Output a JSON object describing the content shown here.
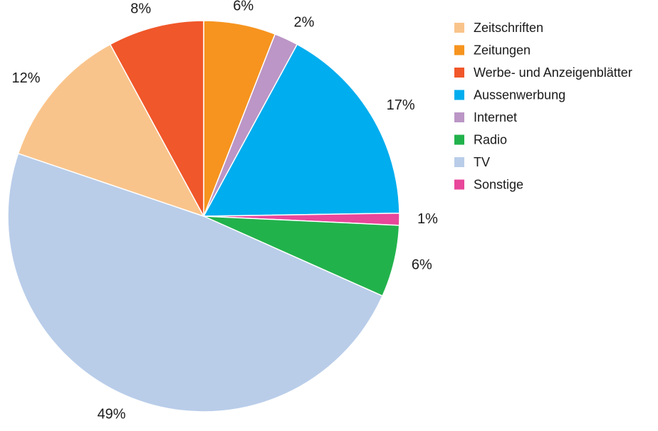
{
  "chart_data": {
    "type": "pie",
    "title": "",
    "series": [
      {
        "label": "Zeitschriften",
        "value": 12,
        "display": "12%",
        "color": "#f9c48b"
      },
      {
        "label": "Zeitungen",
        "value": 6,
        "display": "6%",
        "color": "#f6941f"
      },
      {
        "label": "Werbe- und Anzeigenblätter",
        "value": 8,
        "display": "8%",
        "color": "#f0572a"
      },
      {
        "label": "Aussenwerbung",
        "value": 17,
        "display": "17%",
        "color": "#00adee"
      },
      {
        "label": "Internet",
        "value": 2,
        "display": "2%",
        "color": "#bb96c6"
      },
      {
        "label": "Radio",
        "value": 6,
        "display": "6%",
        "color": "#22b24c"
      },
      {
        "label": "TV",
        "value": 49,
        "display": "49%",
        "color": "#b9cde9"
      },
      {
        "label": "Sonstige",
        "value": 1,
        "display": "1%",
        "color": "#e8479a"
      }
    ],
    "slice_order_clockwise_from_top": [
      "Zeitungen",
      "Internet",
      "Aussenwerbung",
      "Sonstige",
      "Radio",
      "TV",
      "Zeitschriften",
      "Werbe- und Anzeigenblätter"
    ],
    "legend_position": "top-right"
  }
}
